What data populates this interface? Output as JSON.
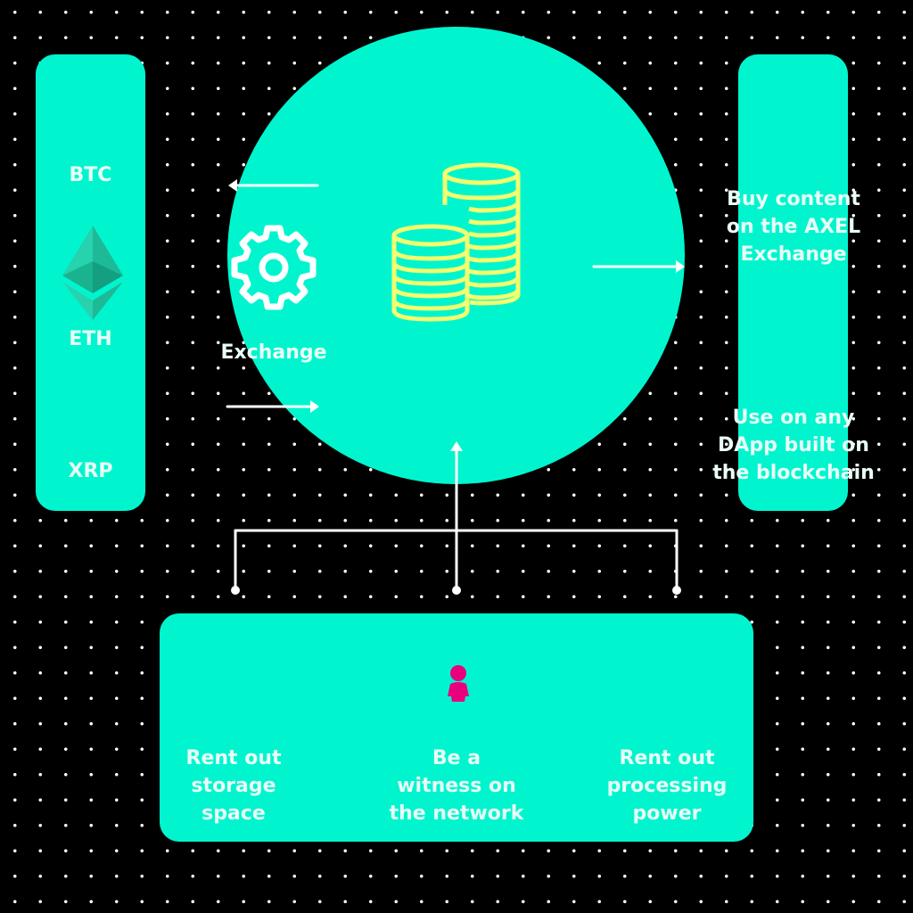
{
  "coins": [
    {
      "label": "BTC"
    },
    {
      "label": "ETH",
      "icon": "ethereum-icon"
    },
    {
      "label": "XRP"
    }
  ],
  "center": {
    "label": "Exchange",
    "icons": [
      "gear-icon",
      "coins-stack-icon"
    ]
  },
  "uses": [
    {
      "label": "Buy content\non the AXEL\nExchange"
    },
    {
      "label": "Use on any\nDApp built on\nthe blockchain"
    }
  ],
  "contributions": {
    "icon": "person-icon",
    "items": [
      {
        "label": "Rent out\nstorage\nspace"
      },
      {
        "label": "Be a\nwitness on\nthe network"
      },
      {
        "label": "Rent out\nprocessing\npower"
      }
    ]
  },
  "colors": {
    "background": "#000000",
    "shape_fill": "#00f5cf",
    "text": "#e9fdf7",
    "line": "#ffffff",
    "coins_stroke": "#f2ff6e",
    "person": "#e8007d"
  }
}
